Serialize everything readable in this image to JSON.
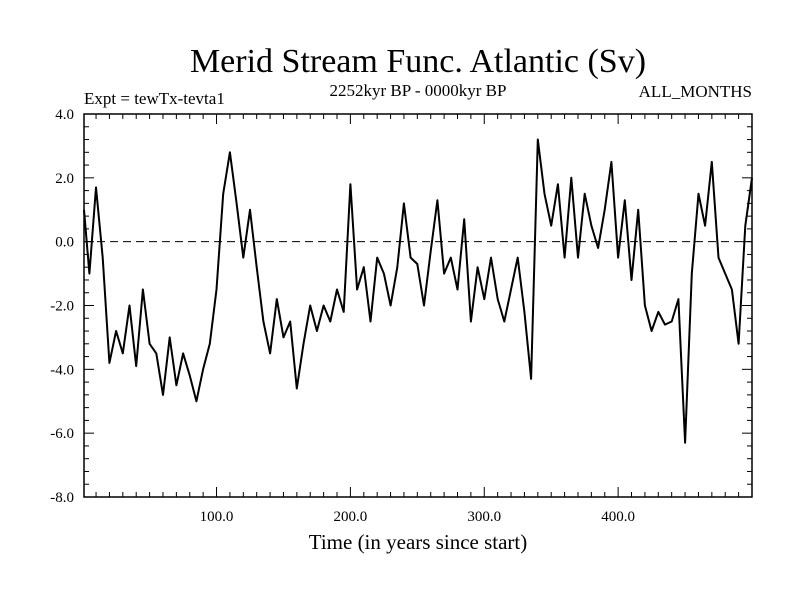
{
  "chart_data": {
    "type": "line",
    "title": "Merid Stream Func. Atlantic (Sv)",
    "subtitle_left": "Expt = tewTx-tevta1",
    "subtitle_center": "2252kyr BP - 0000kyr BP",
    "subtitle_right": "ALL_MONTHS",
    "xlabel": "Time (in years since start)",
    "ylabel": "",
    "xlim": [
      1,
      500
    ],
    "ylim": [
      -8,
      4
    ],
    "x_ticks": [
      100,
      200,
      300,
      400
    ],
    "x_tick_labels": [
      "100.0",
      "200.0",
      "300.0",
      "400.0"
    ],
    "y_ticks": [
      4,
      2,
      0,
      -2,
      -4,
      -6,
      -8
    ],
    "y_tick_labels": [
      "4.0",
      "2.0",
      "0.0",
      "-2.0",
      "-4.0",
      "-6.0",
      "-8.0"
    ],
    "reference_line": 0,
    "grid": false,
    "x": [
      1,
      5,
      10,
      15,
      20,
      25,
      30,
      35,
      40,
      45,
      50,
      55,
      60,
      65,
      70,
      75,
      80,
      85,
      90,
      95,
      100,
      105,
      110,
      115,
      120,
      125,
      130,
      135,
      140,
      145,
      150,
      155,
      160,
      165,
      170,
      175,
      180,
      185,
      190,
      195,
      200,
      205,
      210,
      215,
      220,
      225,
      230,
      235,
      240,
      245,
      250,
      255,
      260,
      265,
      270,
      275,
      280,
      285,
      290,
      295,
      300,
      305,
      310,
      315,
      320,
      325,
      330,
      335,
      340,
      345,
      350,
      355,
      360,
      365,
      370,
      375,
      380,
      385,
      390,
      395,
      400,
      405,
      410,
      415,
      420,
      425,
      430,
      435,
      440,
      445,
      450,
      455,
      460,
      465,
      470,
      475,
      480,
      485,
      490,
      495,
      500
    ],
    "values": [
      1.0,
      -1.0,
      1.7,
      -0.5,
      -3.8,
      -2.8,
      -3.5,
      -2.0,
      -3.9,
      -1.5,
      -3.2,
      -3.5,
      -4.8,
      -3.0,
      -4.5,
      -3.5,
      -4.2,
      -5.0,
      -4.0,
      -3.2,
      -1.5,
      1.5,
      2.8,
      1.2,
      -0.5,
      1.0,
      -0.8,
      -2.5,
      -3.5,
      -1.8,
      -3.0,
      -2.5,
      -4.6,
      -3.2,
      -2.0,
      -2.8,
      -2.0,
      -2.5,
      -1.5,
      -2.2,
      1.8,
      -1.5,
      -0.8,
      -2.5,
      -0.5,
      -1.0,
      -2.0,
      -0.8,
      1.2,
      -0.5,
      -0.7,
      -2.0,
      -0.3,
      1.3,
      -1.0,
      -0.5,
      -1.5,
      0.7,
      -2.5,
      -0.8,
      -1.8,
      -0.5,
      -1.8,
      -2.5,
      -1.5,
      -0.5,
      -2.2,
      -4.3,
      3.2,
      1.5,
      0.5,
      1.8,
      -0.5,
      2.0,
      -0.5,
      1.5,
      0.5,
      -0.2,
      1.0,
      2.5,
      -0.5,
      1.3,
      -1.2,
      1.0,
      -2.0,
      -2.8,
      -2.2,
      -2.6,
      -2.5,
      -1.8,
      -6.3,
      -1.0,
      1.5,
      0.5,
      2.5,
      -0.5,
      -1.0,
      -1.5,
      -3.2,
      0.5,
      2.0
    ]
  }
}
